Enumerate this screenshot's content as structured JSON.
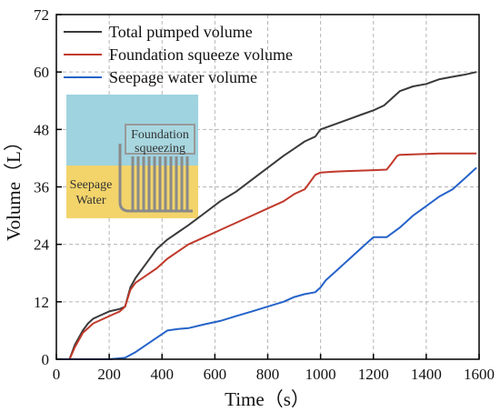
{
  "chart_data": {
    "type": "line",
    "xlabel": "Time（s）",
    "ylabel": "Volume（L）",
    "xlim": [
      0,
      1600
    ],
    "ylim": [
      0,
      72
    ],
    "xticks": [
      0,
      200,
      400,
      600,
      800,
      1000,
      1200,
      1400,
      1600
    ],
    "yticks": [
      0,
      12,
      24,
      36,
      48,
      60,
      72
    ],
    "grid": "dashed",
    "legend_position": "top-left",
    "series": [
      {
        "name": "Total pumped volume",
        "color": "#3a3a3a",
        "x": [
          0,
          50,
          70,
          100,
          120,
          140,
          160,
          200,
          240,
          260,
          280,
          300,
          340,
          380,
          420,
          460,
          500,
          560,
          620,
          680,
          740,
          800,
          860,
          900,
          940,
          980,
          1000,
          1050,
          1100,
          1150,
          1200,
          1240,
          1270,
          1300,
          1350,
          1400,
          1450,
          1500,
          1550,
          1590
        ],
        "y": [
          0,
          0,
          3,
          6,
          7.5,
          8.5,
          9,
          10,
          10.5,
          11,
          15,
          17,
          20,
          23,
          25,
          26.5,
          28,
          30.5,
          33,
          35,
          37.5,
          40,
          42.5,
          44,
          45.5,
          46.5,
          48,
          49,
          50,
          51,
          52,
          53,
          54.5,
          56,
          57,
          57.5,
          58.5,
          59,
          59.5,
          60
        ]
      },
      {
        "name": "Foundation squeeze volume",
        "color": "#c0392b",
        "x": [
          0,
          50,
          70,
          100,
          140,
          200,
          240,
          260,
          280,
          300,
          340,
          380,
          420,
          460,
          500,
          560,
          620,
          680,
          740,
          800,
          860,
          900,
          940,
          980,
          1000,
          1050,
          1100,
          1150,
          1200,
          1250,
          1270,
          1290,
          1300,
          1350,
          1400,
          1450,
          1500,
          1550,
          1590
        ],
        "y": [
          0,
          0,
          2.5,
          5.5,
          7.5,
          9,
          10,
          11,
          14.5,
          16,
          17.5,
          19,
          21,
          22.5,
          24,
          25.5,
          27,
          28.5,
          30,
          31.5,
          33,
          34.5,
          35.5,
          38.5,
          39,
          39.2,
          39.3,
          39.4,
          39.5,
          39.6,
          41,
          42.5,
          42.7,
          42.8,
          42.9,
          43,
          43,
          43,
          43
        ]
      },
      {
        "name": "Seepage water volume",
        "color": "#2563c9",
        "x": [
          0,
          100,
          150,
          200,
          260,
          300,
          340,
          380,
          420,
          460,
          500,
          560,
          620,
          680,
          740,
          800,
          860,
          900,
          940,
          980,
          1000,
          1020,
          1060,
          1100,
          1150,
          1200,
          1250,
          1300,
          1350,
          1400,
          1450,
          1500,
          1550,
          1590
        ],
        "y": [
          0,
          0,
          0,
          0,
          0.3,
          1.5,
          3,
          4.5,
          6,
          6.3,
          6.5,
          7.3,
          8,
          9,
          10,
          11,
          12,
          13,
          13.6,
          14,
          15,
          16.5,
          18.5,
          20.5,
          23,
          25.5,
          25.5,
          27.5,
          30,
          32,
          34,
          35.5,
          38,
          40
        ]
      }
    ]
  },
  "inset": {
    "label_top": "Foundation",
    "label_bottom": "squeezing",
    "label_left_top": "Seepage",
    "label_left_bottom": "Water"
  }
}
